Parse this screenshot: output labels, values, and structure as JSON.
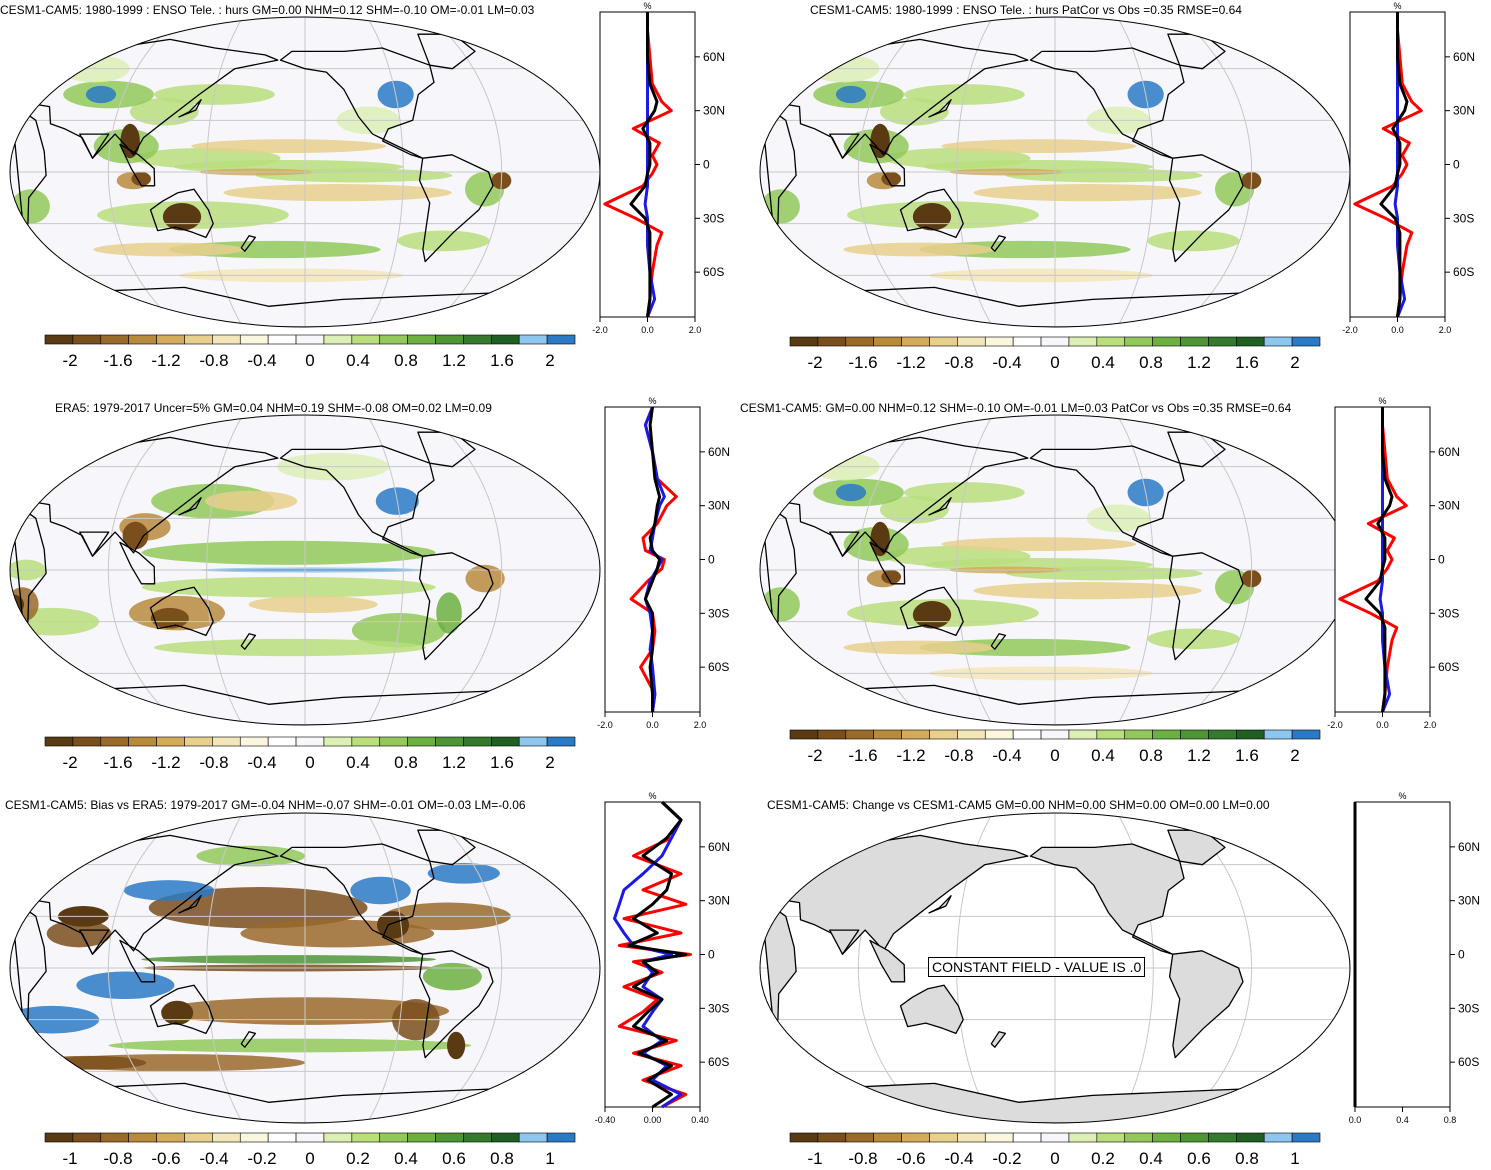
{
  "colors": {
    "scale": [
      "#5a3a12",
      "#7a4f1c",
      "#9a6a2a",
      "#b88a3c",
      "#d4ab5a",
      "#e8cf8c",
      "#f3e6b8",
      "#fbf6de",
      "#ffffff",
      "#f7f7fb",
      "#dcefb5",
      "#b9de7c",
      "#92c95a",
      "#6cb042",
      "#4e9535",
      "#357a2c",
      "#1f5f23",
      "#8dc6ee",
      "#2a7ac5"
    ],
    "ocean": "#f7f6fb",
    "grid": "#c8c8c8",
    "land_const": "#dcdcdc",
    "red": "#ff0000",
    "blue": "#1a1ae6",
    "black": "#000000"
  },
  "panels": [
    {
      "id": "p1",
      "title": "CESM1-CAM5: 1980-1999 : ENSO Tele. : hurs GM=0.00 NHM=0.12 SHM=-0.10 OM=-0.01 LM=0.03",
      "colorbar_labels": [
        "-2",
        "-1.6",
        "-1.2",
        "-0.8",
        "-0.4",
        "0",
        "0.4",
        "0.8",
        "1.2",
        "1.6",
        "2"
      ],
      "zonal": {
        "unit": "%",
        "lat_labels": [
          "60N",
          "30N",
          "0",
          "30S",
          "60S"
        ],
        "x_ticks": [
          "-2.0",
          "0.0",
          "2.0"
        ]
      }
    },
    {
      "id": "p2",
      "title": "CESM1-CAM5: 1980-1999 : ENSO Tele. : hurs PatCor vs Obs =0.35 RMSE=0.64",
      "colorbar_labels": [
        "-2",
        "-1.6",
        "-1.2",
        "-0.8",
        "-0.4",
        "0",
        "0.4",
        "0.8",
        "1.2",
        "1.6",
        "2"
      ],
      "zonal": {
        "unit": "%",
        "lat_labels": [
          "60N",
          "30N",
          "0",
          "30S",
          "60S"
        ],
        "x_ticks": [
          "-2.0",
          "0.0",
          "2.0"
        ]
      }
    },
    {
      "id": "p3",
      "title": "ERA5: 1979-2017 Uncer=5% GM=0.04 NHM=0.19 SHM=-0.08 OM=0.02 LM=0.09",
      "colorbar_labels": [
        "-2",
        "-1.6",
        "-1.2",
        "-0.8",
        "-0.4",
        "0",
        "0.4",
        "0.8",
        "1.2",
        "1.6",
        "2"
      ],
      "zonal": {
        "unit": "%",
        "lat_labels": [
          "60N",
          "30N",
          "0",
          "30S",
          "60S"
        ],
        "x_ticks": [
          "-2.0",
          "0.0",
          "2.0"
        ]
      }
    },
    {
      "id": "p4",
      "title": "CESM1-CAM5: GM=0.00 NHM=0.12 SHM=-0.10 OM=-0.01 LM=0.03 PatCor vs Obs =0.35 RMSE=0.64",
      "colorbar_labels": [
        "-2",
        "-1.6",
        "-1.2",
        "-0.8",
        "-0.4",
        "0",
        "0.4",
        "0.8",
        "1.2",
        "1.6",
        "2"
      ],
      "zonal": {
        "unit": "%",
        "lat_labels": [
          "60N",
          "30N",
          "0",
          "30S",
          "60S"
        ],
        "x_ticks": [
          "-2.0",
          "0.0",
          "2.0"
        ]
      }
    },
    {
      "id": "p5",
      "title": "CESM1-CAM5: Bias vs ERA5: 1979-2017 GM=-0.04 NHM=-0.07 SHM=-0.01 OM=-0.03 LM=-0.06",
      "colorbar_labels": [
        "-1",
        "-0.8",
        "-0.6",
        "-0.4",
        "-0.2",
        "0",
        "0.2",
        "0.4",
        "0.6",
        "0.8",
        "1"
      ],
      "zonal": {
        "unit": "%",
        "lat_labels": [
          "60N",
          "30N",
          "0",
          "30S",
          "60S"
        ],
        "x_ticks": [
          "-0.40",
          "0.00",
          "0.40"
        ]
      }
    },
    {
      "id": "p6",
      "title": "CESM1-CAM5: Change vs CESM1-CAM5 GM=0.00 NHM=0.00 SHM=0.00 OM=0.00 LM=0.00",
      "colorbar_labels": [
        "-1",
        "-0.8",
        "-0.6",
        "-0.4",
        "-0.2",
        "0",
        "0.2",
        "0.4",
        "0.6",
        "0.8",
        "1"
      ],
      "note": "CONSTANT FIELD - VALUE IS .0",
      "zonal": {
        "unit": "%",
        "lat_labels": [
          "60N",
          "30N",
          "0",
          "30S",
          "60S"
        ],
        "x_ticks": [
          "0.0",
          "0.4",
          "0.8"
        ]
      }
    }
  ],
  "chart_data": [
    {
      "type": "heatmap",
      "title": "CESM1-CAM5: 1980-1999 : ENSO Tele. : hurs GM=0.00 NHM=0.12 SHM=-0.10 OM=-0.01 LM=0.03",
      "colorbar": {
        "min": -2,
        "max": 2,
        "ticks": [
          -2,
          -1.6,
          -1.2,
          -0.8,
          -0.4,
          0,
          0.4,
          0.8,
          1.2,
          1.6,
          2
        ]
      },
      "zonal_mean": {
        "ylabel": "%",
        "xlim": [
          -2,
          2
        ],
        "lat": [
          -85,
          -75,
          -60,
          -45,
          -38,
          -30,
          -22,
          -12,
          -5,
          0,
          5,
          12,
          20,
          30,
          35,
          45,
          60,
          75,
          85
        ],
        "series": [
          {
            "color": "red",
            "values": [
              0,
              0.1,
              0.2,
              0.4,
              0.6,
              -0.5,
              -1.8,
              -0.2,
              0.2,
              0.4,
              0.2,
              0.5,
              -0.6,
              1.0,
              0.6,
              0.2,
              0.1,
              0,
              0
            ]
          },
          {
            "color": "blue",
            "values": [
              0,
              0.3,
              0.1,
              0,
              0,
              0,
              -0.1,
              0,
              0,
              0,
              0,
              0,
              0,
              0,
              0,
              0,
              0,
              0,
              0
            ]
          },
          {
            "color": "black",
            "values": [
              0,
              0.1,
              0.1,
              0.1,
              0.1,
              -0.1,
              -0.7,
              -0.1,
              0,
              0.1,
              0.1,
              0.1,
              -0.2,
              0.3,
              0.4,
              0.1,
              0,
              0,
              0
            ]
          }
        ]
      }
    },
    {
      "type": "heatmap",
      "title": "CESM1-CAM5: 1980-1999 : ENSO Tele. : hurs PatCor vs Obs =0.35 RMSE=0.64",
      "colorbar": {
        "min": -2,
        "max": 2,
        "ticks": [
          -2,
          -1.6,
          -1.2,
          -0.8,
          -0.4,
          0,
          0.4,
          0.8,
          1.2,
          1.6,
          2
        ]
      },
      "zonal_mean": {
        "ylabel": "%",
        "xlim": [
          -2,
          2
        ],
        "lat": [
          -85,
          -75,
          -60,
          -45,
          -38,
          -30,
          -22,
          -12,
          -5,
          0,
          5,
          12,
          20,
          30,
          35,
          45,
          60,
          75,
          85
        ],
        "series": [
          {
            "color": "red",
            "values": [
              0,
              0.1,
              0.2,
              0.4,
              0.6,
              -0.5,
              -1.8,
              -0.2,
              0.2,
              0.4,
              0.2,
              0.5,
              -0.6,
              1.0,
              0.6,
              0.2,
              0.1,
              0,
              0
            ]
          },
          {
            "color": "blue",
            "values": [
              0,
              0.3,
              0.1,
              0,
              0,
              0,
              -0.1,
              0,
              0,
              0,
              0,
              0,
              0,
              0,
              0,
              0,
              0,
              0,
              0
            ]
          },
          {
            "color": "black",
            "values": [
              0,
              0.1,
              0.1,
              0.1,
              0.1,
              -0.1,
              -0.7,
              -0.1,
              0,
              0.1,
              0.1,
              0.1,
              -0.2,
              0.3,
              0.4,
              0.1,
              0,
              0,
              0
            ]
          }
        ]
      }
    },
    {
      "type": "heatmap",
      "title": "ERA5: 1979-2017 Uncer=5% GM=0.04 NHM=0.19 SHM=-0.08 OM=0.02 LM=0.09",
      "colorbar": {
        "min": -2,
        "max": 2,
        "ticks": [
          -2,
          -1.6,
          -1.2,
          -0.8,
          -0.4,
          0,
          0.4,
          0.8,
          1.2,
          1.6,
          2
        ]
      },
      "zonal_mean": {
        "ylabel": "%",
        "xlim": [
          -2,
          2
        ],
        "lat": [
          -85,
          -75,
          -60,
          -50,
          -40,
          -30,
          -22,
          -12,
          -5,
          0,
          5,
          12,
          20,
          30,
          35,
          45,
          60,
          75,
          85
        ],
        "series": [
          {
            "color": "red",
            "values": [
              0,
              0.1,
              -0.5,
              0,
              0.1,
              0,
              -0.9,
              -0.2,
              0.4,
              0.5,
              -0.3,
              -0.4,
              0.2,
              0.6,
              1.0,
              0.2,
              0,
              -0.3,
              0
            ]
          },
          {
            "color": "blue",
            "values": [
              0,
              0.1,
              0,
              -0.1,
              0,
              -0.1,
              -0.3,
              -0.1,
              0.2,
              0.4,
              -0.1,
              0,
              0.1,
              0.3,
              0.5,
              0.2,
              0,
              -0.3,
              0
            ]
          },
          {
            "color": "black",
            "values": [
              0,
              0,
              -0.1,
              0,
              0,
              0,
              -0.3,
              0,
              0.2,
              0.3,
              0,
              -0.1,
              0.1,
              0.2,
              0.3,
              0.1,
              0,
              -0.1,
              0
            ]
          }
        ]
      }
    },
    {
      "type": "heatmap",
      "title": "CESM1-CAM5: GM=0.00 NHM=0.12 SHM=-0.10 OM=-0.01 LM=0.03 PatCor vs Obs =0.35 RMSE=0.64",
      "colorbar": {
        "min": -2,
        "max": 2,
        "ticks": [
          -2,
          -1.6,
          -1.2,
          -0.8,
          -0.4,
          0,
          0.4,
          0.8,
          1.2,
          1.6,
          2
        ]
      },
      "zonal_mean": {
        "ylabel": "%",
        "xlim": [
          -2,
          2
        ],
        "lat": [
          -85,
          -75,
          -60,
          -45,
          -38,
          -30,
          -22,
          -12,
          -5,
          0,
          5,
          12,
          20,
          30,
          35,
          45,
          60,
          75,
          85
        ],
        "series": [
          {
            "color": "red",
            "values": [
              0,
              0.1,
              0.2,
              0.4,
              0.6,
              -0.5,
              -1.8,
              -0.2,
              0.2,
              0.4,
              0.2,
              0.5,
              -0.6,
              1.0,
              0.6,
              0.2,
              0.1,
              0,
              0
            ]
          },
          {
            "color": "blue",
            "values": [
              0,
              0.3,
              0.1,
              0,
              0,
              0,
              -0.1,
              0,
              0,
              0,
              0,
              0,
              0,
              0,
              0,
              0,
              0,
              0,
              0
            ]
          },
          {
            "color": "black",
            "values": [
              0,
              0.1,
              0.1,
              0.1,
              0.1,
              -0.1,
              -0.7,
              -0.1,
              0,
              0.1,
              0.1,
              0.1,
              -0.2,
              0.3,
              0.4,
              0.1,
              0,
              0,
              0
            ]
          }
        ]
      }
    },
    {
      "type": "heatmap",
      "title": "CESM1-CAM5: Bias vs ERA5: 1979-2017 GM=-0.04 NHM=-0.07 SHM=-0.01 OM=-0.03 LM=-0.06",
      "colorbar": {
        "min": -1,
        "max": 1,
        "ticks": [
          -1,
          -0.8,
          -0.6,
          -0.4,
          -0.2,
          0,
          0.2,
          0.4,
          0.6,
          0.8,
          1
        ]
      },
      "zonal_mean": {
        "ylabel": "%",
        "xlim": [
          -0.5,
          0.5
        ],
        "lat": [
          -85,
          -78,
          -70,
          -62,
          -55,
          -48,
          -40,
          -32,
          -25,
          -18,
          -10,
          -4,
          0,
          5,
          12,
          20,
          28,
          36,
          45,
          55,
          65,
          75,
          85
        ],
        "series": [
          {
            "color": "red",
            "values": [
              0.1,
              0.35,
              -0.1,
              0.3,
              -0.2,
              0.25,
              -0.35,
              -0.1,
              0.05,
              -0.3,
              0.1,
              -0.2,
              0.4,
              -0.35,
              0.3,
              -0.3,
              0.35,
              -0.1,
              0.3,
              -0.2,
              0.2,
              0.3,
              0.1
            ]
          },
          {
            "color": "blue",
            "values": [
              0.1,
              0.3,
              0,
              0.15,
              -0.1,
              0.1,
              -0.1,
              0,
              0.1,
              -0.1,
              0,
              -0.1,
              0.2,
              -0.2,
              -0.3,
              -0.4,
              -0.35,
              -0.3,
              -0.1,
              0.1,
              0.2,
              0.3,
              0.1
            ]
          },
          {
            "color": "black",
            "values": [
              0,
              0.2,
              -0.05,
              0.2,
              -0.15,
              0.15,
              -0.2,
              -0.05,
              0.1,
              -0.2,
              0.05,
              -0.1,
              0.35,
              -0.25,
              0.05,
              -0.2,
              0,
              0.15,
              0.2,
              -0.1,
              0.15,
              0.3,
              0.1
            ]
          }
        ]
      }
    },
    {
      "type": "heatmap",
      "title": "CESM1-CAM5: Change vs CESM1-CAM5 GM=0.00 NHM=0.00 SHM=0.00 OM=0.00 LM=0.00",
      "colorbar": {
        "min": -1,
        "max": 1,
        "ticks": [
          -1,
          -0.8,
          -0.6,
          -0.4,
          -0.2,
          0,
          0.2,
          0.4,
          0.6,
          0.8,
          1
        ]
      },
      "constant_value": 0,
      "zonal_mean": {
        "ylabel": "%",
        "xlim": [
          0,
          1
        ],
        "lat": [
          -85,
          85
        ],
        "series": [
          {
            "color": "black",
            "values": [
              0,
              0
            ]
          }
        ]
      }
    }
  ]
}
